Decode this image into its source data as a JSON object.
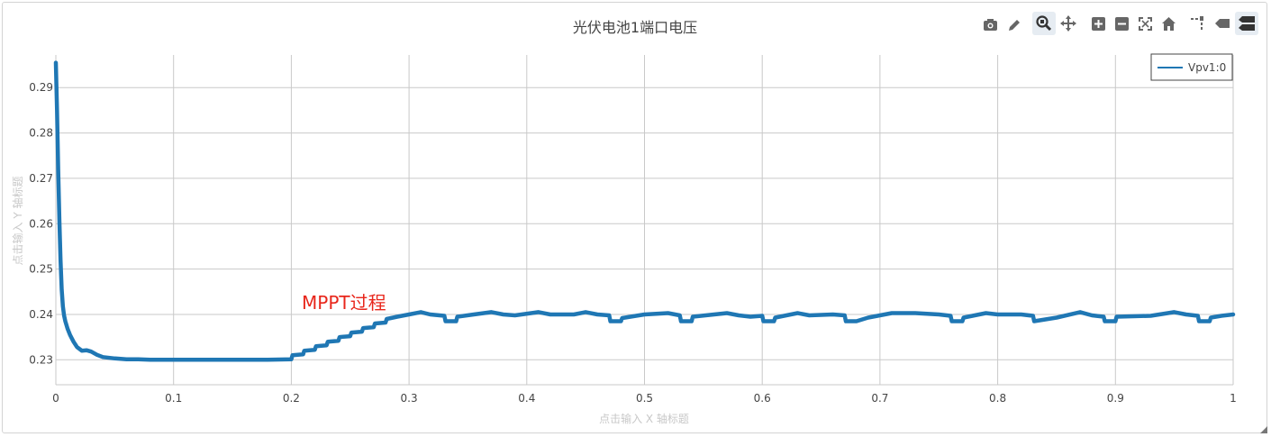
{
  "modebar": {
    "tools": [
      "camera-icon",
      "pencil-icon",
      "zoom-icon",
      "pan-icon",
      "zoom-in-icon",
      "zoom-out-icon",
      "autoscale-icon",
      "home-icon",
      "spike-lines-icon",
      "hover-closest-icon",
      "hover-compare-icon"
    ],
    "active": "zoom-icon",
    "accent": "#444444",
    "active_bg": "#e6ecf2"
  },
  "chart_data": {
    "type": "line",
    "title": "光伏电池1端口电压",
    "xlabel": "点击输入 X 轴标题",
    "ylabel": "点击输入 Y 轴标题",
    "xlim": [
      0,
      1
    ],
    "ylim": [
      0.2245,
      0.2972
    ],
    "x_ticks": [
      0,
      0.1,
      0.2,
      0.3,
      0.4,
      0.5,
      0.6,
      0.7,
      0.8,
      0.9,
      1
    ],
    "x_tick_labels": [
      "0",
      "0.1",
      "0.2",
      "0.3",
      "0.4",
      "0.5",
      "0.6",
      "0.7",
      "0.8",
      "0.9",
      "1"
    ],
    "y_ticks": [
      0.23,
      0.24,
      0.25,
      0.26,
      0.27,
      0.28,
      0.29
    ],
    "y_tick_labels": [
      "0.23",
      "0.24",
      "0.25",
      "0.26",
      "0.27",
      "0.28",
      "0.29"
    ],
    "grid": true,
    "legend": "top-right",
    "annotation": {
      "text": "MPPT过程",
      "x": 0.21,
      "y": 0.2445,
      "color": "#e8261b"
    },
    "series": [
      {
        "name": "Vpv1:0",
        "color": "#1f77b4",
        "x": [
          0,
          0.001,
          0.002,
          0.003,
          0.004,
          0.005,
          0.006,
          0.007,
          0.008,
          0.01,
          0.012,
          0.015,
          0.018,
          0.022,
          0.026,
          0.03,
          0.035,
          0.04,
          0.05,
          0.06,
          0.07,
          0.08,
          0.09,
          0.1,
          0.12,
          0.14,
          0.16,
          0.18,
          0.2,
          0.201,
          0.21,
          0.211,
          0.22,
          0.221,
          0.23,
          0.231,
          0.24,
          0.241,
          0.25,
          0.251,
          0.26,
          0.261,
          0.27,
          0.271,
          0.28,
          0.281,
          0.29,
          0.3,
          0.31,
          0.318,
          0.33,
          0.331,
          0.34,
          0.341,
          0.355,
          0.37,
          0.38,
          0.39,
          0.41,
          0.42,
          0.44,
          0.45,
          0.46,
          0.47,
          0.471,
          0.48,
          0.481,
          0.5,
          0.52,
          0.53,
          0.531,
          0.54,
          0.541,
          0.57,
          0.58,
          0.59,
          0.6,
          0.601,
          0.61,
          0.611,
          0.63,
          0.64,
          0.66,
          0.67,
          0.671,
          0.68,
          0.69,
          0.71,
          0.73,
          0.75,
          0.76,
          0.761,
          0.77,
          0.771,
          0.79,
          0.8,
          0.82,
          0.83,
          0.831,
          0.85,
          0.87,
          0.88,
          0.89,
          0.891,
          0.9,
          0.901,
          0.93,
          0.95,
          0.96,
          0.97,
          0.971,
          0.98,
          0.981,
          0.99,
          1
        ],
        "y": [
          0.2955,
          0.285,
          0.272,
          0.261,
          0.252,
          0.2455,
          0.2418,
          0.2398,
          0.2385,
          0.2368,
          0.2355,
          0.234,
          0.2328,
          0.232,
          0.2321,
          0.2318,
          0.2311,
          0.2306,
          0.2303,
          0.2301,
          0.2301,
          0.23,
          0.23,
          0.23,
          0.23,
          0.23,
          0.23,
          0.23,
          0.2301,
          0.231,
          0.2312,
          0.232,
          0.2322,
          0.233,
          0.2332,
          0.234,
          0.2342,
          0.235,
          0.2352,
          0.236,
          0.2362,
          0.237,
          0.2372,
          0.238,
          0.2382,
          0.239,
          0.2395,
          0.24,
          0.2405,
          0.24,
          0.2397,
          0.2385,
          0.2385,
          0.2395,
          0.24,
          0.2405,
          0.24,
          0.2398,
          0.2405,
          0.24,
          0.24,
          0.2405,
          0.24,
          0.2398,
          0.2385,
          0.2385,
          0.2392,
          0.24,
          0.2403,
          0.2398,
          0.2385,
          0.2385,
          0.2395,
          0.2403,
          0.2398,
          0.2395,
          0.2397,
          0.2385,
          0.2385,
          0.2393,
          0.2403,
          0.2398,
          0.24,
          0.2398,
          0.2385,
          0.2385,
          0.2393,
          0.2403,
          0.2403,
          0.24,
          0.2397,
          0.2385,
          0.2385,
          0.2393,
          0.2403,
          0.24,
          0.24,
          0.2397,
          0.2385,
          0.2393,
          0.2405,
          0.2398,
          0.2395,
          0.2385,
          0.2385,
          0.2395,
          0.2397,
          0.2405,
          0.24,
          0.2397,
          0.2385,
          0.2385,
          0.2393,
          0.2397,
          0.24
        ]
      }
    ]
  }
}
